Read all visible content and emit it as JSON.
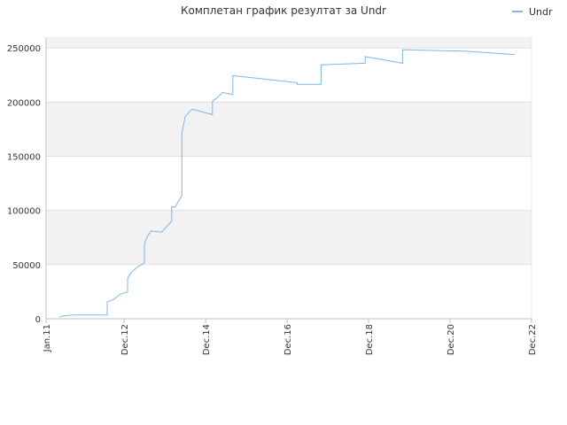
{
  "chart_data": {
    "type": "line",
    "title": "Комплетан график резултат за Undr",
    "series": [
      {
        "name": "Undr",
        "color": "#7cb5ec",
        "x": [
          "May.11",
          "Jun.11",
          "Sep.11",
          "Jul.12",
          "Jul.12",
          "Sep.12",
          "Nov.12",
          "Jan.13",
          "Jan.13",
          "Feb.13",
          "Apr.13",
          "Jun.13",
          "Jun.13",
          "Jul.13",
          "Aug.13",
          "Nov.13",
          "Feb.14",
          "Feb.14",
          "Mar.14",
          "May.14",
          "May.14",
          "Jun.14",
          "Aug.14",
          "Feb.15",
          "Feb.15",
          "Mar.15",
          "May.15",
          "Aug.15",
          "Aug.15",
          "May.16",
          "Mar.17",
          "Mar.17",
          "Oct.17",
          "Oct.17",
          "Nov.18",
          "Nov.18",
          "Oct.19",
          "Oct.19",
          "May.21",
          "Jul.22"
        ],
        "values": [
          1500,
          2500,
          3500,
          3500,
          15500,
          18000,
          23000,
          24500,
          37000,
          42500,
          48000,
          51500,
          70000,
          77000,
          81000,
          80000,
          90000,
          103500,
          103000,
          114000,
          171500,
          187000,
          193500,
          188500,
          201000,
          203000,
          209000,
          207000,
          224500,
          221500,
          218000,
          216500,
          216500,
          234500,
          236000,
          242000,
          236000,
          248500,
          247000,
          244000
        ]
      }
    ],
    "ylim": [
      0,
      260000
    ],
    "yticks": [
      0,
      50000,
      100000,
      150000,
      200000,
      250000
    ],
    "xlim": [
      "Jan.11",
      "Dec.22"
    ],
    "xticks": [
      "Jan.11",
      "Dec.12",
      "Dec.14",
      "Dec.16",
      "Dec.18",
      "Dec.20",
      "Dec.22"
    ],
    "grid": true,
    "legend": "top-right"
  }
}
